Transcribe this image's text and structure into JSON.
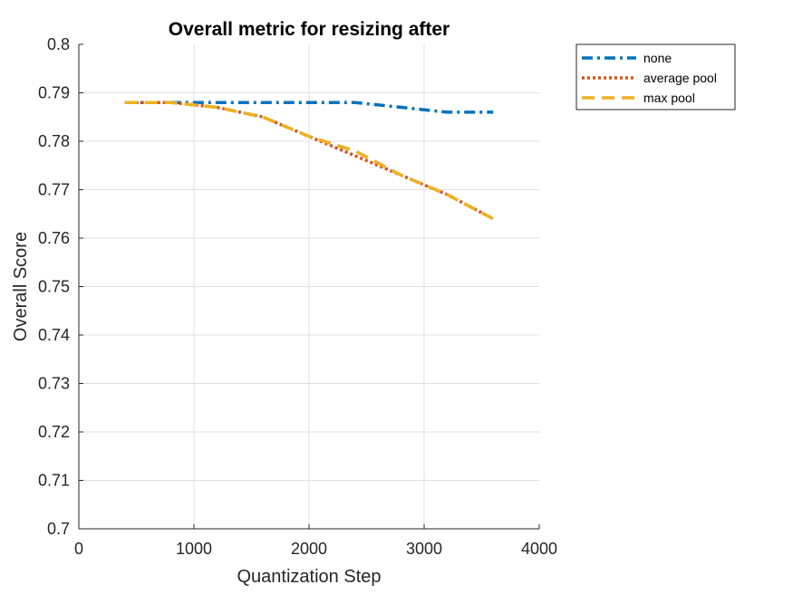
{
  "chart_data": {
    "type": "line",
    "title": "Overall metric for resizing after",
    "xlabel": "Quantization Step",
    "ylabel": "Overall Score",
    "xlim": [
      0,
      4000
    ],
    "ylim": [
      0.7,
      0.8
    ],
    "xticks": [
      0,
      1000,
      2000,
      3000,
      4000
    ],
    "xtick_labels": [
      "0",
      "1000",
      "2000",
      "3000",
      "4000"
    ],
    "yticks": [
      0.7,
      0.71,
      0.72,
      0.73,
      0.74,
      0.75,
      0.76,
      0.77,
      0.78,
      0.79,
      0.8
    ],
    "ytick_labels": [
      "0.7",
      "0.71",
      "0.72",
      "0.73",
      "0.74",
      "0.75",
      "0.76",
      "0.77",
      "0.78",
      "0.79",
      "0.8"
    ],
    "grid": true,
    "legend_position": "outside-top-right",
    "x": [
      400,
      800,
      1200,
      1600,
      2000,
      2400,
      2800,
      3200,
      3600
    ],
    "series": [
      {
        "name": "none",
        "color": "#0072BD",
        "style": "dash-dot",
        "values": [
          0.788,
          0.788,
          0.788,
          0.788,
          0.788,
          0.788,
          0.787,
          0.786,
          0.786
        ]
      },
      {
        "name": "average pool",
        "color": "#D95319",
        "style": "dotted",
        "values": [
          0.788,
          0.788,
          0.787,
          0.785,
          0.781,
          0.777,
          0.773,
          0.769,
          0.764
        ]
      },
      {
        "name": "max pool",
        "color": "#EDB120",
        "style": "dashed",
        "values": [
          0.788,
          0.788,
          0.787,
          0.785,
          0.781,
          0.778,
          0.773,
          0.769,
          0.764
        ]
      }
    ]
  }
}
